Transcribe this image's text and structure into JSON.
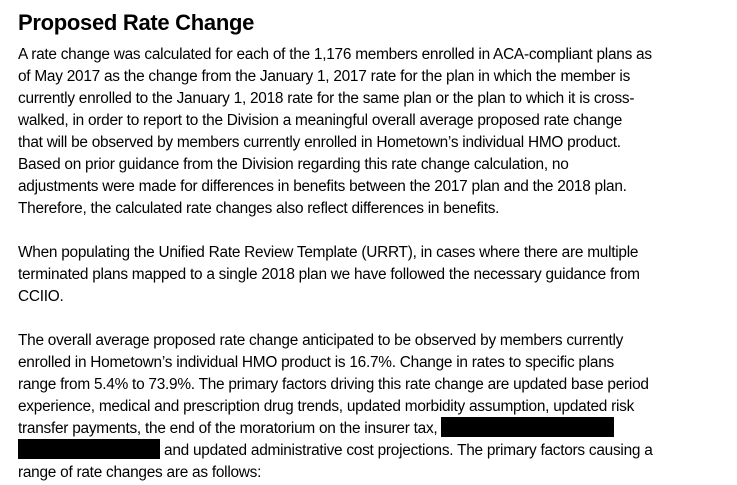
{
  "page": {
    "background_color": "#ffffff",
    "text_color": "#000000",
    "redaction_color": "#000000"
  },
  "document": {
    "title": "Proposed Rate Change",
    "paragraphs": [
      {
        "lines": [
          [
            {
              "text": "A rate change was calculated for each of the 1,176 members enrolled in ACA-compliant plans as"
            }
          ],
          [
            {
              "text": "of May 2017 as the change from the January 1, 2017 rate for the plan in which the member is"
            }
          ],
          [
            {
              "text": "currently enrolled to the January 1, 2018 rate for the same plan or the plan to which it is cross-"
            }
          ],
          [
            {
              "text": "walked, in order to report to the Division a meaningful overall average proposed rate change"
            }
          ],
          [
            {
              "text": "that will be observed by members currently enrolled in Hometown’s individual HMO product."
            }
          ],
          [
            {
              "text": "Based on prior guidance from the Division regarding this rate change calculation, no"
            }
          ],
          [
            {
              "text": "adjustments were made for differences in benefits between the 2017 plan and the 2018 plan."
            }
          ],
          [
            {
              "text": "Therefore, the calculated rate changes also reflect differences in benefits."
            }
          ]
        ]
      },
      {
        "lines": [
          [
            {
              "text": "When populating the Unified Rate Review Template (URRT), in cases where there are multiple"
            }
          ],
          [
            {
              "text": "terminated plans mapped to a single 2018 plan we have followed the necessary guidance from"
            }
          ],
          [
            {
              "text": "CCIIO."
            }
          ]
        ]
      },
      {
        "lines": [
          [
            {
              "text": "The overall average proposed rate change anticipated to be observed by members currently"
            }
          ],
          [
            {
              "text": "enrolled in Hometown’s individual HMO product is 16.7%. Change in rates to specific plans"
            }
          ],
          [
            {
              "text": "range from 5.4% to 73.9%. The primary factors driving this rate change are updated base period"
            }
          ],
          [
            {
              "text": "experience, medical and prescription drug trends, updated morbidity assumption, updated risk"
            }
          ],
          [
            {
              "text": "transfer payments, the end of the moratorium on the insurer tax, "
            },
            {
              "redacted": true,
              "width": 173
            }
          ],
          [
            {
              "redacted": true,
              "width": 142
            },
            {
              "text": " and updated administrative cost projections. The primary factors causing a"
            }
          ],
          [
            {
              "text": "range of rate changes are as follows:"
            }
          ]
        ]
      }
    ]
  }
}
